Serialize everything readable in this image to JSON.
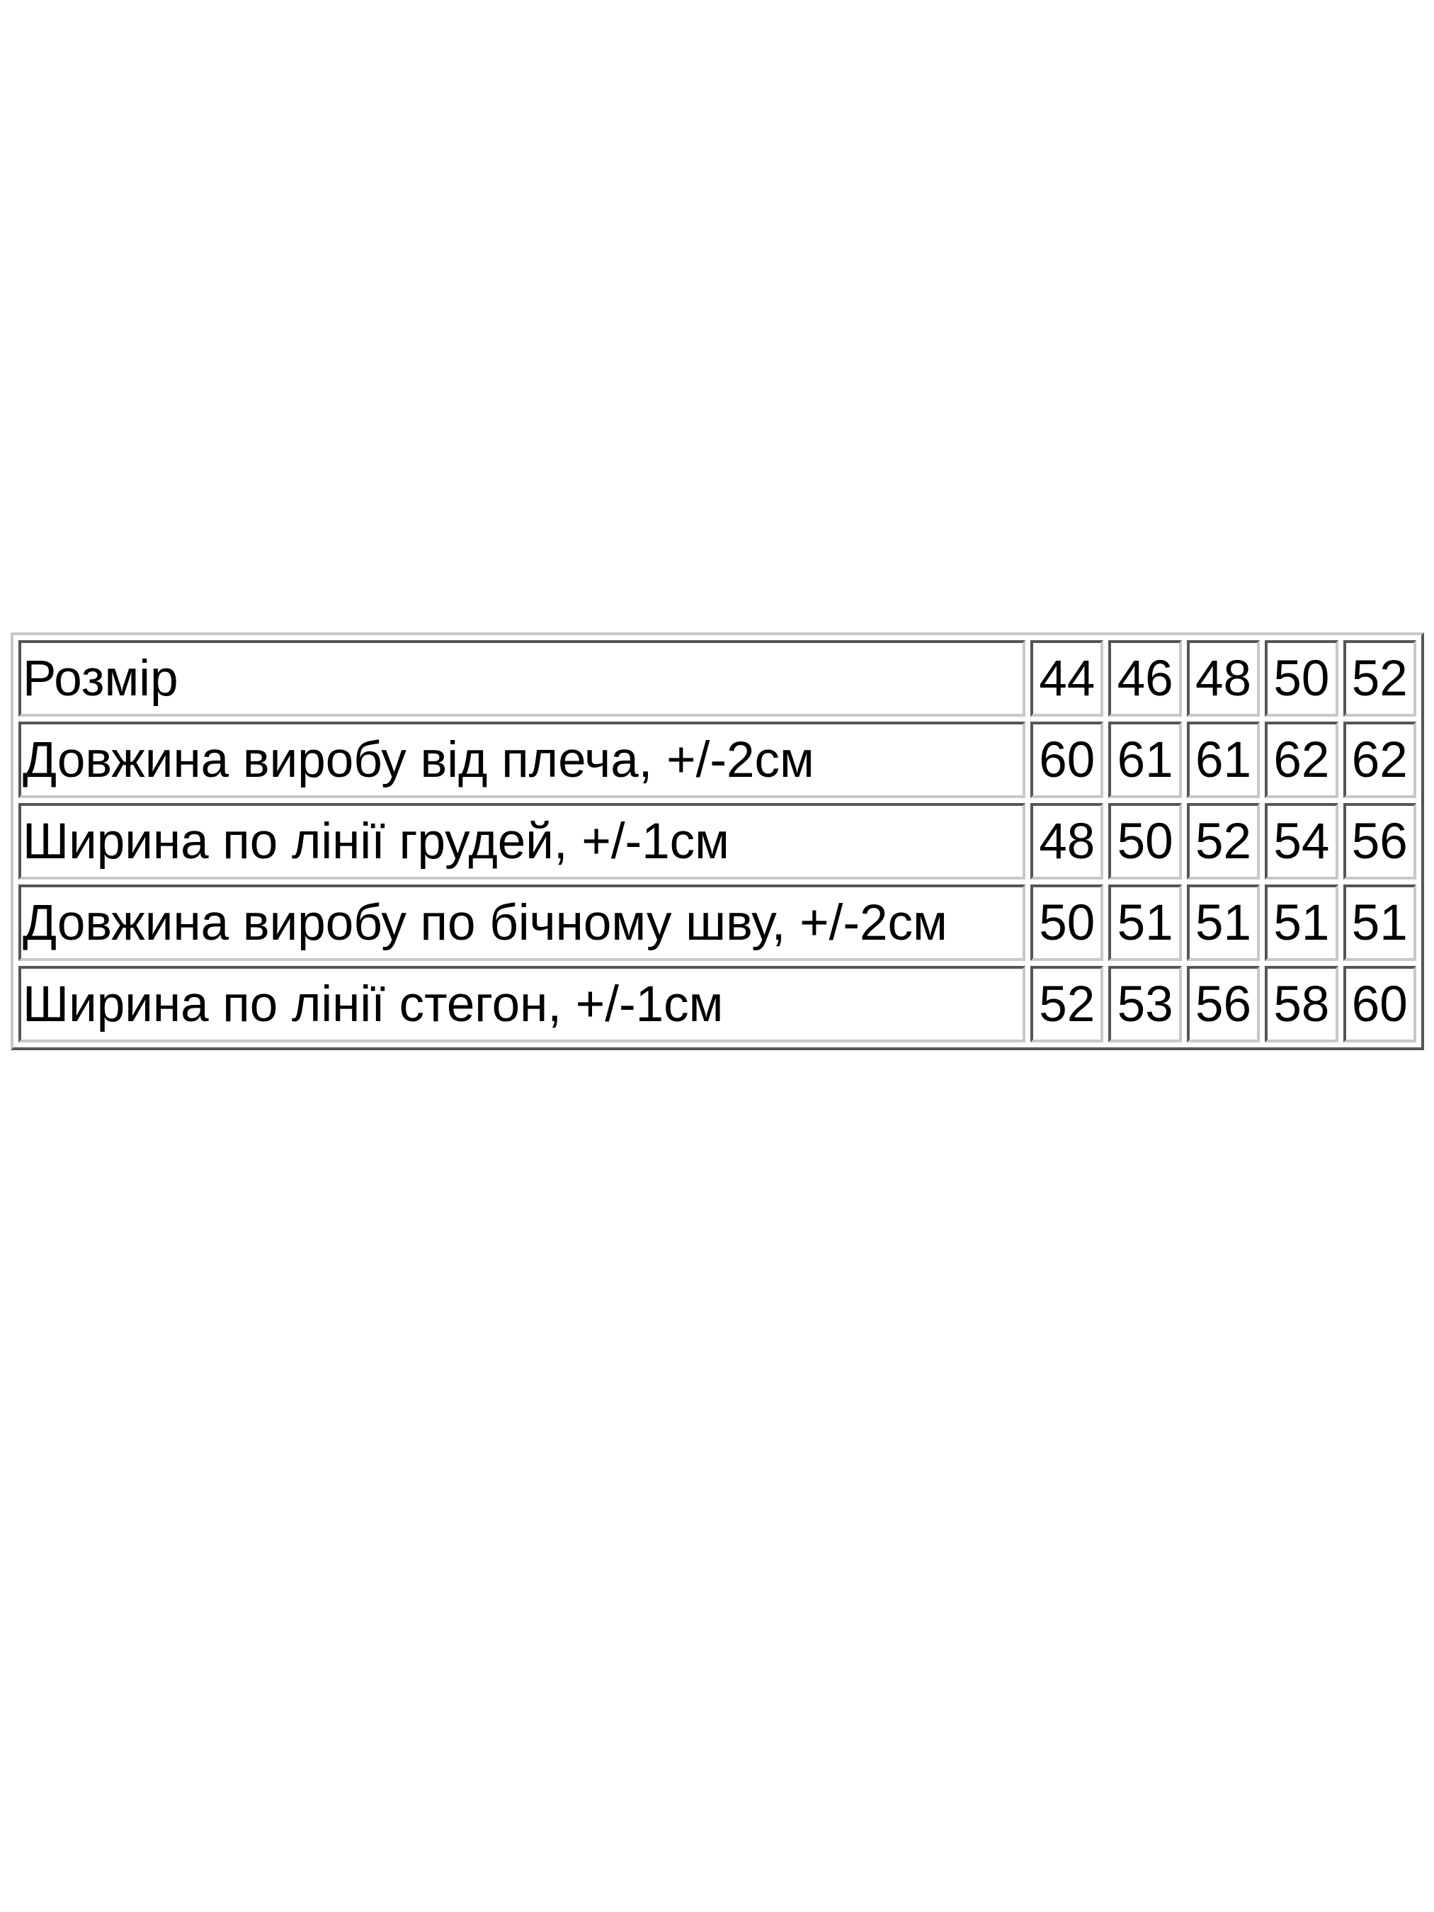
{
  "size_table": {
    "rows": [
      {
        "label": "Розмір",
        "values": [
          "44",
          "46",
          "48",
          "50",
          "52"
        ]
      },
      {
        "label": "Довжина виробу від плеча, +/-2см",
        "values": [
          "60",
          "61",
          "61",
          "62",
          "62"
        ]
      },
      {
        "label": "Ширина по лінії грудей, +/-1см",
        "values": [
          "48",
          "50",
          "52",
          "54",
          "56"
        ]
      },
      {
        "label": "Довжина виробу по бічному шву, +/-2см",
        "values": [
          "50",
          "51",
          "51",
          "51",
          "51"
        ]
      },
      {
        "label": "Ширина по лінії стегон, +/-1см",
        "values": [
          "52",
          "53",
          "56",
          "58",
          "60"
        ]
      }
    ]
  }
}
